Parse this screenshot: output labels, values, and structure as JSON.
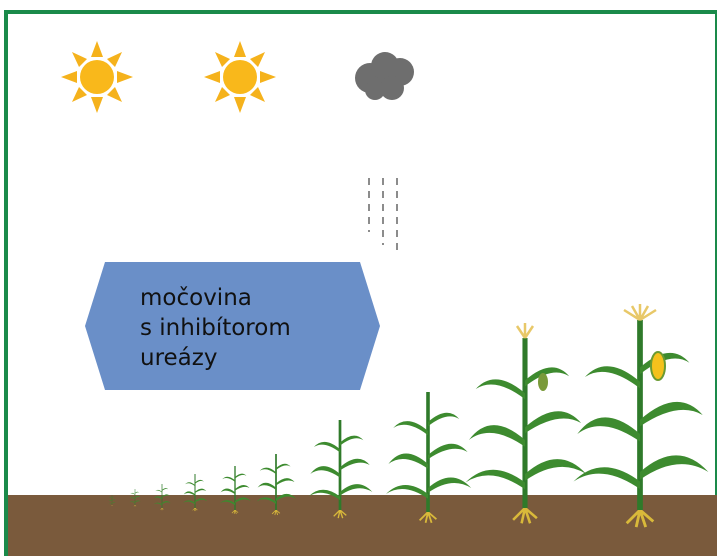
{
  "label": {
    "lines": [
      "močovina",
      "s inhibítorom",
      "ureázy"
    ]
  }
}
